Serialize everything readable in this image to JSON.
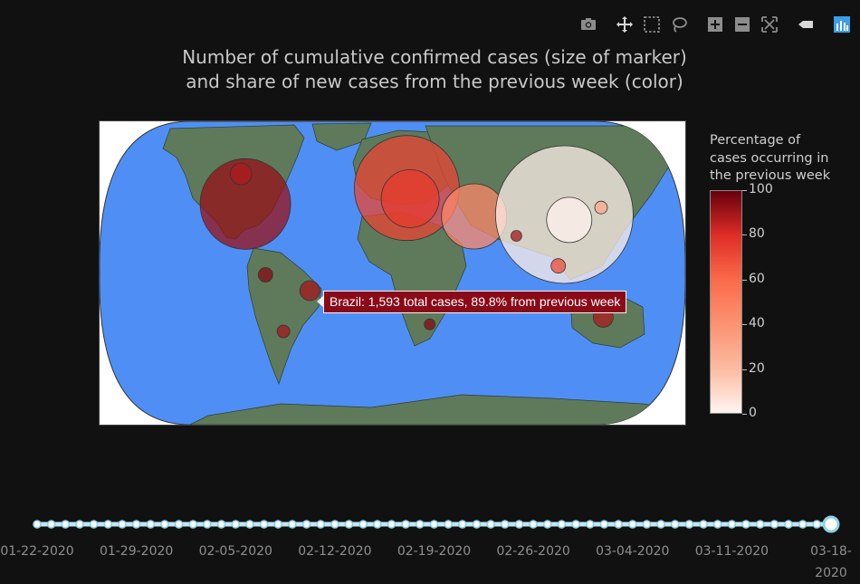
{
  "title_lines": [
    "Number of cumulative confirmed cases (size of marker)",
    "and share of new cases from the previous week (color)"
  ],
  "toolbar": [
    {
      "name": "camera-icon"
    },
    {
      "name": "pan-icon"
    },
    {
      "name": "box-select-icon"
    },
    {
      "name": "lasso-select-icon"
    },
    {
      "name": "zoom-in-icon"
    },
    {
      "name": "zoom-out-icon"
    },
    {
      "name": "reset-scale-icon"
    },
    {
      "name": "toggle-spike-icon"
    },
    {
      "name": "plotly-logo-icon"
    }
  ],
  "colorbar": {
    "title_lines": [
      "Percentage of",
      "cases occurring in",
      "the previous week"
    ],
    "ticks": [
      "100",
      "80",
      "60",
      "40",
      "20",
      "0"
    ],
    "range": [
      0,
      100
    ],
    "colors": [
      "#fff5f0",
      "#fcbba1",
      "#fc9272",
      "#fb6a4a",
      "#de2d26",
      "#67000d"
    ]
  },
  "tooltip": "Brazil: 1,593 total cases, 89.8% from previous week",
  "slider": {
    "labels": [
      "01-22-2020",
      "01-29-2020",
      "02-05-2020",
      "02-12-2020",
      "02-19-2020",
      "02-26-2020",
      "03-04-2020",
      "03-11-2020",
      "03-18-\n2020"
    ],
    "steps": 57,
    "active_step": 56
  },
  "chart_data": {
    "type": "scatter-geo",
    "projection": "robinson",
    "colors": {
      "ocean": "#4f8ff5",
      "land": "#5e7a5b"
    },
    "color_scale": "Reds",
    "markers": [
      {
        "region": "United States",
        "lon": -98,
        "lat": 39,
        "pct_prev_week": 92
      },
      {
        "region": "Canada",
        "lon": -110,
        "lat": 56,
        "pct_prev_week": 88
      },
      {
        "region": "Brazil",
        "lon": -51,
        "lat": -10,
        "pct_prev_week": 89.8
      },
      {
        "region": "Chile",
        "lon": -71,
        "lat": -33,
        "pct_prev_week": 90
      },
      {
        "region": "Ecuador",
        "lon": -78,
        "lat": -1,
        "pct_prev_week": 95
      },
      {
        "region": "Europe",
        "lon": 10,
        "lat": 48,
        "pct_prev_week": 72
      },
      {
        "region": "Italy",
        "lon": 12,
        "lat": 42,
        "pct_prev_week": 75
      },
      {
        "region": "Iran",
        "lon": 53,
        "lat": 32,
        "pct_prev_week": 45
      },
      {
        "region": "China",
        "lon": 112,
        "lat": 33,
        "pct_prev_week": 2
      },
      {
        "region": "Hubei",
        "lon": 114,
        "lat": 30,
        "pct_prev_week": 1
      },
      {
        "region": "Australia",
        "lon": 134,
        "lat": -25,
        "pct_prev_week": 88
      },
      {
        "region": "India",
        "lon": 78,
        "lat": 21,
        "pct_prev_week": 90
      },
      {
        "region": "Malaysia",
        "lon": 102,
        "lat": 4,
        "pct_prev_week": 70
      },
      {
        "region": "Japan",
        "lon": 138,
        "lat": 37,
        "pct_prev_week": 30
      },
      {
        "region": "South Africa",
        "lon": 24,
        "lat": -29,
        "pct_prev_week": 95
      }
    ]
  }
}
